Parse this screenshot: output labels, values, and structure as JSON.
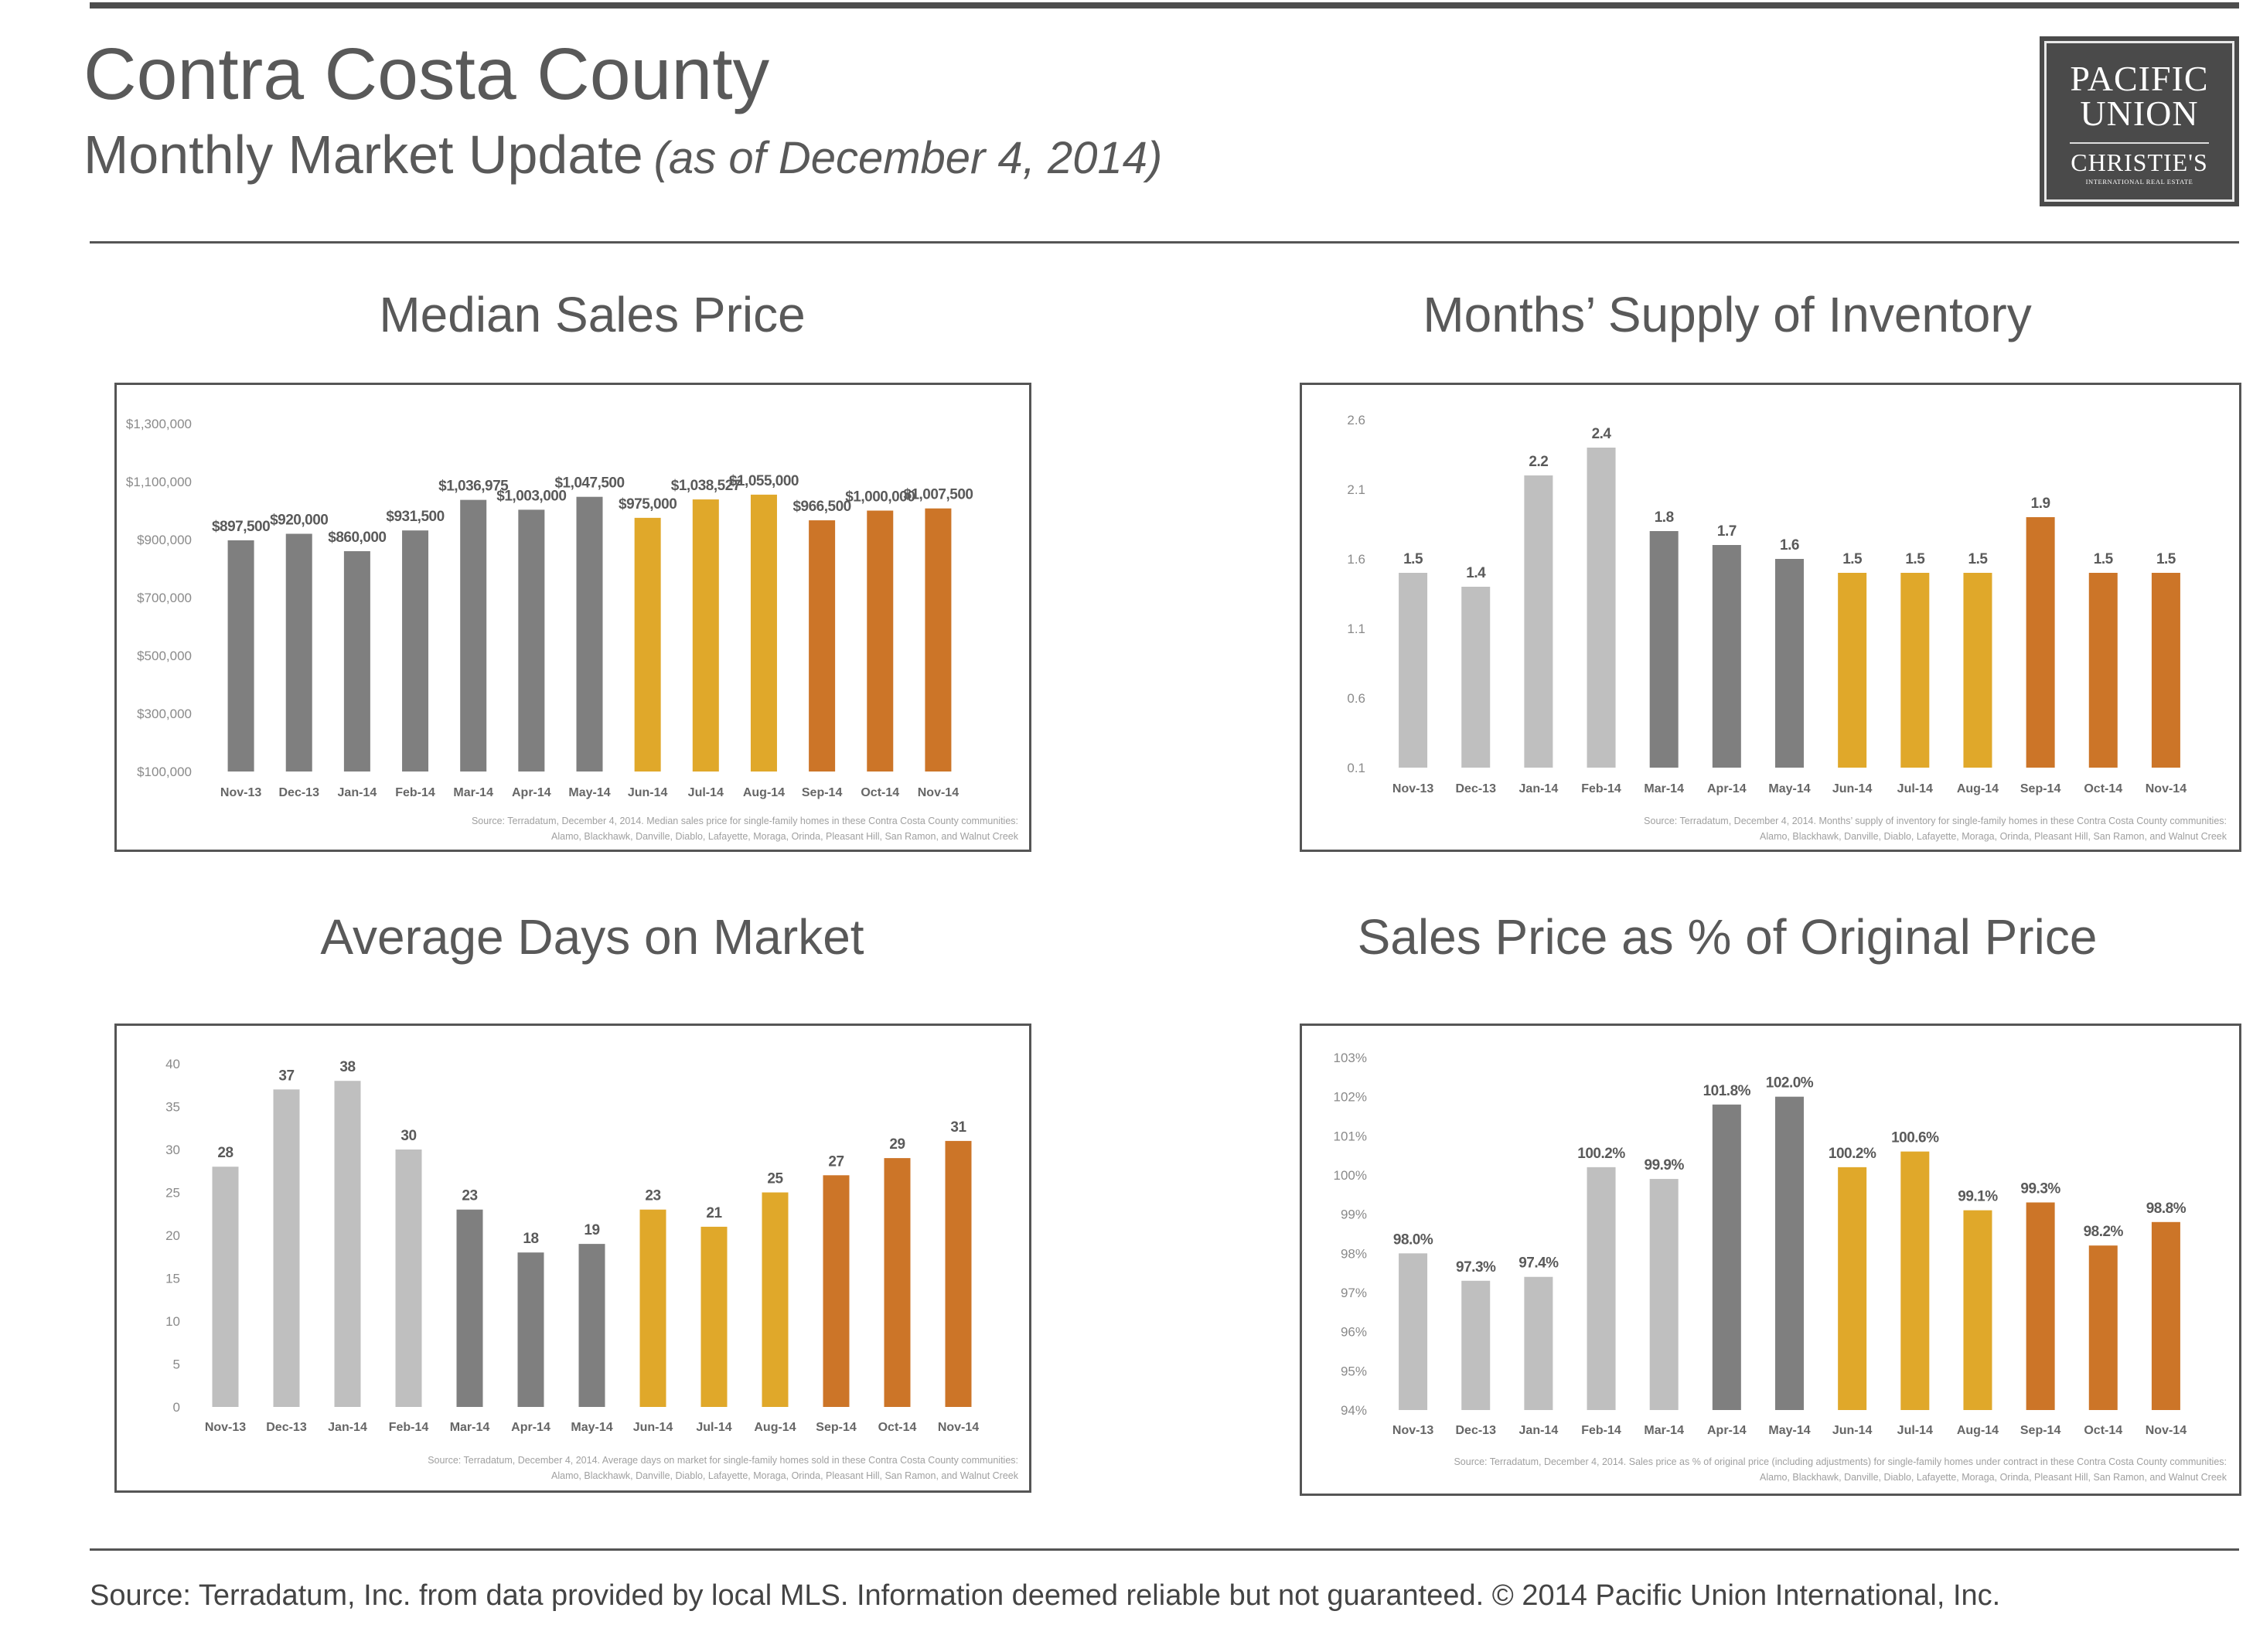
{
  "header": {
    "title": "Contra Costa County",
    "subtitle": "Monthly Market Update",
    "as_of": "(as of December 4, 2014)"
  },
  "logo": {
    "line1": "PACIFIC",
    "line2": "UNION",
    "line3": "CHRISTIE'S",
    "line4": "INTERNATIONAL REAL ESTATE"
  },
  "footer": {
    "text": "Source: Terradatum, Inc. from data provided by local MLS. Information deemed reliable but not guaranteed.  © 2014 Pacific Union International, Inc."
  },
  "colors": {
    "light_gray": "#bfbfbf",
    "dark_gray": "#7f7f7f",
    "gold": "#e0a82a",
    "orange": "#cc7528"
  },
  "chart_data": [
    {
      "type": "bar",
      "title": "Median Sales Price",
      "categories": [
        "Nov-13",
        "Dec-13",
        "Jan-14",
        "Feb-14",
        "Mar-14",
        "Apr-14",
        "May-14",
        "Jun-14",
        "Jul-14",
        "Aug-14",
        "Sep-14",
        "Oct-14",
        "Nov-14"
      ],
      "values": [
        897500,
        920000,
        860000,
        931500,
        1036975,
        1003000,
        1047500,
        975000,
        1038527,
        1055000,
        966500,
        1000000,
        1007500
      ],
      "value_labels": [
        "$897,500",
        "$920,000",
        "$860,000",
        "$931,500",
        "$1,036,975",
        "$1,003,000",
        "$1,047,500",
        "$975,000",
        "$1,038,527",
        "$1,055,000",
        "$966,500",
        "$1,000,000",
        "$1,007,500"
      ],
      "bar_colors": [
        "#7f7f7f",
        "#7f7f7f",
        "#7f7f7f",
        "#7f7f7f",
        "#7f7f7f",
        "#7f7f7f",
        "#7f7f7f",
        "#e0a82a",
        "#e0a82a",
        "#e0a82a",
        "#cc7528",
        "#cc7528",
        "#cc7528"
      ],
      "ylim": [
        100000,
        1300000
      ],
      "yticks": [
        "$100,000",
        "$300,000",
        "$500,000",
        "$700,000",
        "$900,000",
        "$1,100,000",
        "$1,300,000"
      ],
      "ytick_values": [
        100000,
        300000,
        500000,
        700000,
        900000,
        1100000,
        1300000
      ],
      "grid": false,
      "source": [
        "Source:  Terradatum,  December 4, 2014.  Median  sales price for single-family homes in these Contra Costa County communities:",
        "Alamo, Blackhawk, Danville,  Diablo, Lafayette, Moraga, Orinda,  Pleasant Hill, San Ramon, and Walnut Creek"
      ]
    },
    {
      "type": "bar",
      "title": "Months’ Supply of Inventory",
      "categories": [
        "Nov-13",
        "Dec-13",
        "Jan-14",
        "Feb-14",
        "Mar-14",
        "Apr-14",
        "May-14",
        "Jun-14",
        "Jul-14",
        "Aug-14",
        "Sep-14",
        "Oct-14",
        "Nov-14"
      ],
      "values": [
        1.5,
        1.4,
        2.2,
        2.4,
        1.8,
        1.7,
        1.6,
        1.5,
        1.5,
        1.5,
        1.9,
        1.5,
        1.5
      ],
      "value_labels": [
        "1.5",
        "1.4",
        "2.2",
        "2.4",
        "1.8",
        "1.7",
        "1.6",
        "1.5",
        "1.5",
        "1.5",
        "1.9",
        "1.5",
        "1.5"
      ],
      "bar_colors": [
        "#bfbfbf",
        "#bfbfbf",
        "#bfbfbf",
        "#bfbfbf",
        "#7f7f7f",
        "#7f7f7f",
        "#7f7f7f",
        "#e0a82a",
        "#e0a82a",
        "#e0a82a",
        "#cc7528",
        "#cc7528",
        "#cc7528"
      ],
      "ylim": [
        0.1,
        2.6
      ],
      "yticks": [
        "0.1",
        "0.6",
        "1.1",
        "1.6",
        "2.1",
        "2.6"
      ],
      "ytick_values": [
        0.1,
        0.6,
        1.1,
        1.6,
        2.1,
        2.6
      ],
      "grid": false,
      "source": [
        "Source:  Terradatum,  December 4, 2014.  Months’ supply of inventory  for single-family  homes in these Contra Costa County communities:",
        "Alamo, Blackhawk, Danville,  Diablo, Lafayette, Moraga, Orinda, Pleasant Hill, San Ramon, and Walnut Creek"
      ]
    },
    {
      "type": "bar",
      "title": "Average Days on Market",
      "categories": [
        "Nov-13",
        "Dec-13",
        "Jan-14",
        "Feb-14",
        "Mar-14",
        "Apr-14",
        "May-14",
        "Jun-14",
        "Jul-14",
        "Aug-14",
        "Sep-14",
        "Oct-14",
        "Nov-14"
      ],
      "values": [
        28,
        37,
        38,
        30,
        23,
        18,
        19,
        23,
        21,
        25,
        27,
        29,
        31
      ],
      "value_labels": [
        "28",
        "37",
        "38",
        "30",
        "23",
        "18",
        "19",
        "23",
        "21",
        "25",
        "27",
        "29",
        "31"
      ],
      "bar_colors": [
        "#bfbfbf",
        "#bfbfbf",
        "#bfbfbf",
        "#bfbfbf",
        "#7f7f7f",
        "#7f7f7f",
        "#7f7f7f",
        "#e0a82a",
        "#e0a82a",
        "#e0a82a",
        "#cc7528",
        "#cc7528",
        "#cc7528"
      ],
      "ylim": [
        0,
        40
      ],
      "yticks": [
        "0",
        "5",
        "10",
        "15",
        "20",
        "25",
        "30",
        "35",
        "40"
      ],
      "ytick_values": [
        0,
        5,
        10,
        15,
        20,
        25,
        30,
        35,
        40
      ],
      "grid": false,
      "source": [
        "Source:  Terradatum,  December 4, 2014.  Average  days on market for single-family homes  sold in these Contra Costa County communities:",
        "Alamo, Blackhawk, Danville,  Diablo, Lafayette, Moraga, Orinda,  Pleasant Hill, San Ramon, and Walnut Creek"
      ]
    },
    {
      "type": "bar",
      "title": "Sales Price as % of Original Price",
      "categories": [
        "Nov-13",
        "Dec-13",
        "Jan-14",
        "Feb-14",
        "Mar-14",
        "Apr-14",
        "May-14",
        "Jun-14",
        "Jul-14",
        "Aug-14",
        "Sep-14",
        "Oct-14",
        "Nov-14"
      ],
      "values": [
        98.0,
        97.3,
        97.4,
        100.2,
        99.9,
        101.8,
        102.0,
        100.2,
        100.6,
        99.1,
        99.3,
        98.2,
        98.8
      ],
      "value_labels": [
        "98.0%",
        "97.3%",
        "97.4%",
        "100.2%",
        "99.9%",
        "101.8%",
        "102.0%",
        "100.2%",
        "100.6%",
        "99.1%",
        "99.3%",
        "98.2%",
        "98.8%"
      ],
      "bar_colors": [
        "#bfbfbf",
        "#bfbfbf",
        "#bfbfbf",
        "#bfbfbf",
        "#bfbfbf",
        "#7f7f7f",
        "#7f7f7f",
        "#e0a82a",
        "#e0a82a",
        "#e0a82a",
        "#cc7528",
        "#cc7528",
        "#cc7528"
      ],
      "ylim": [
        94,
        103
      ],
      "yticks": [
        "94%",
        "95%",
        "96%",
        "97%",
        "98%",
        "99%",
        "100%",
        "101%",
        "102%",
        "103%"
      ],
      "ytick_values": [
        94,
        95,
        96,
        97,
        98,
        99,
        100,
        101,
        102,
        103
      ],
      "grid": false,
      "source": [
        "Source:  Terradatum,  December 4, 2014.  Sales price as % of original  price (including adjustments) for single-family  homes under contract in these Contra Costa County communities:",
        "Alamo, Blackhawk, Danville,  Diablo, Lafayette, Moraga, Orinda, Pleasant Hill, San Ramon, and Walnut Creek"
      ]
    }
  ]
}
